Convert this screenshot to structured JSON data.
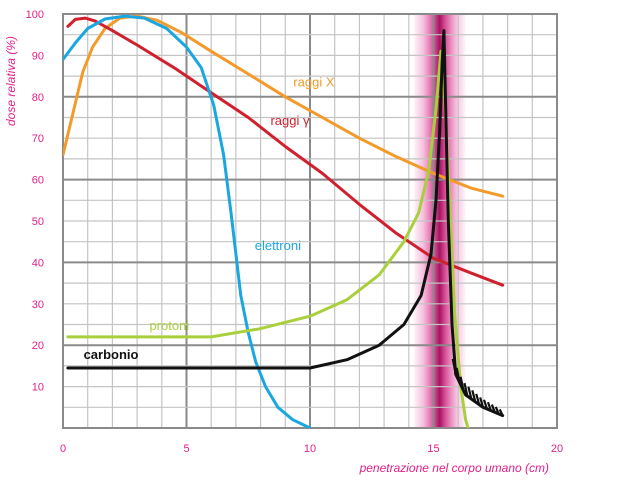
{
  "chart_data": {
    "type": "line",
    "xlabel": "penetrazione nel corpo umano (cm)",
    "ylabel": "dose relativa (%)",
    "xlim": [
      0,
      20
    ],
    "ylim": [
      0,
      100
    ],
    "x_ticks": [
      "0",
      "5",
      "10",
      "15",
      "20"
    ],
    "y_ticks": [
      "10",
      "20",
      "30",
      "40",
      "50",
      "60",
      "70",
      "80",
      "90",
      "100"
    ],
    "grid": true,
    "highlight_band": {
      "x_range": [
        14.2,
        16.3
      ],
      "color": "#e0218a"
    },
    "series": [
      {
        "name": "raggi X",
        "color": "#f39a2a",
        "points": [
          [
            0,
            66
          ],
          [
            0.4,
            76
          ],
          [
            0.8,
            86
          ],
          [
            1.2,
            92
          ],
          [
            1.7,
            96.5
          ],
          [
            2.3,
            99
          ],
          [
            3,
            99.5
          ],
          [
            3.8,
            98.5
          ],
          [
            4.8,
            95.5
          ],
          [
            6,
            91
          ],
          [
            7.5,
            85.5
          ],
          [
            9,
            80
          ],
          [
            10.5,
            75
          ],
          [
            12,
            70
          ],
          [
            13.5,
            65.5
          ],
          [
            15,
            61.5
          ],
          [
            16.5,
            58
          ],
          [
            17.8,
            56
          ]
        ]
      },
      {
        "name": "raggi γ",
        "color": "#d0202e",
        "points": [
          [
            0.2,
            97
          ],
          [
            0.5,
            98.7
          ],
          [
            0.9,
            99
          ],
          [
            1.3,
            98.3
          ],
          [
            2,
            96
          ],
          [
            3,
            92.5
          ],
          [
            4.5,
            87
          ],
          [
            6,
            81
          ],
          [
            7.5,
            75
          ],
          [
            9,
            68
          ],
          [
            10.5,
            61.5
          ],
          [
            12,
            54
          ],
          [
            13.5,
            47
          ],
          [
            15,
            41
          ],
          [
            16.5,
            37.5
          ],
          [
            17.8,
            34.5
          ]
        ]
      },
      {
        "name": "elettroni",
        "color": "#1aa7e0",
        "points": [
          [
            0,
            89
          ],
          [
            0.5,
            93
          ],
          [
            1,
            96.5
          ],
          [
            1.7,
            98.8
          ],
          [
            2.5,
            99.5
          ],
          [
            3.3,
            99
          ],
          [
            4.2,
            96.5
          ],
          [
            5,
            92
          ],
          [
            5.6,
            87
          ],
          [
            6.1,
            78
          ],
          [
            6.5,
            66
          ],
          [
            6.8,
            52
          ],
          [
            7,
            42
          ],
          [
            7.2,
            32
          ],
          [
            7.5,
            23
          ],
          [
            7.8,
            16
          ],
          [
            8.2,
            10
          ],
          [
            8.7,
            5
          ],
          [
            9.3,
            2
          ],
          [
            10,
            0
          ]
        ]
      },
      {
        "name": "protoni",
        "color": "#a9cf3c",
        "points": [
          [
            0.2,
            22
          ],
          [
            2,
            22
          ],
          [
            4,
            22
          ],
          [
            6,
            22
          ],
          [
            8,
            24
          ],
          [
            10,
            27
          ],
          [
            11.5,
            31
          ],
          [
            12.8,
            37
          ],
          [
            13.8,
            45
          ],
          [
            14.4,
            52
          ],
          [
            14.8,
            62
          ],
          [
            15.1,
            77
          ],
          [
            15.3,
            91
          ],
          [
            15.45,
            80
          ],
          [
            15.65,
            55
          ],
          [
            15.85,
            28
          ],
          [
            16.1,
            10
          ],
          [
            16.3,
            2
          ],
          [
            16.4,
            0
          ]
        ]
      },
      {
        "name": "carbonio",
        "color": "#111111",
        "points": [
          [
            0.2,
            14.5
          ],
          [
            4,
            14.5
          ],
          [
            8,
            14.5
          ],
          [
            10,
            14.5
          ],
          [
            11.5,
            16.5
          ],
          [
            12.8,
            20
          ],
          [
            13.8,
            25
          ],
          [
            14.5,
            32
          ],
          [
            14.9,
            42
          ],
          [
            15.1,
            55
          ],
          [
            15.25,
            72
          ],
          [
            15.35,
            88
          ],
          [
            15.42,
            96
          ],
          [
            15.48,
            80
          ],
          [
            15.6,
            50
          ],
          [
            15.75,
            25
          ],
          [
            15.9,
            13
          ],
          [
            16.3,
            8
          ],
          [
            17,
            5
          ],
          [
            17.8,
            3
          ]
        ]
      }
    ],
    "fragmentation_tail": {
      "series": "carbonio",
      "x_range": [
        15.9,
        17.8
      ]
    }
  }
}
